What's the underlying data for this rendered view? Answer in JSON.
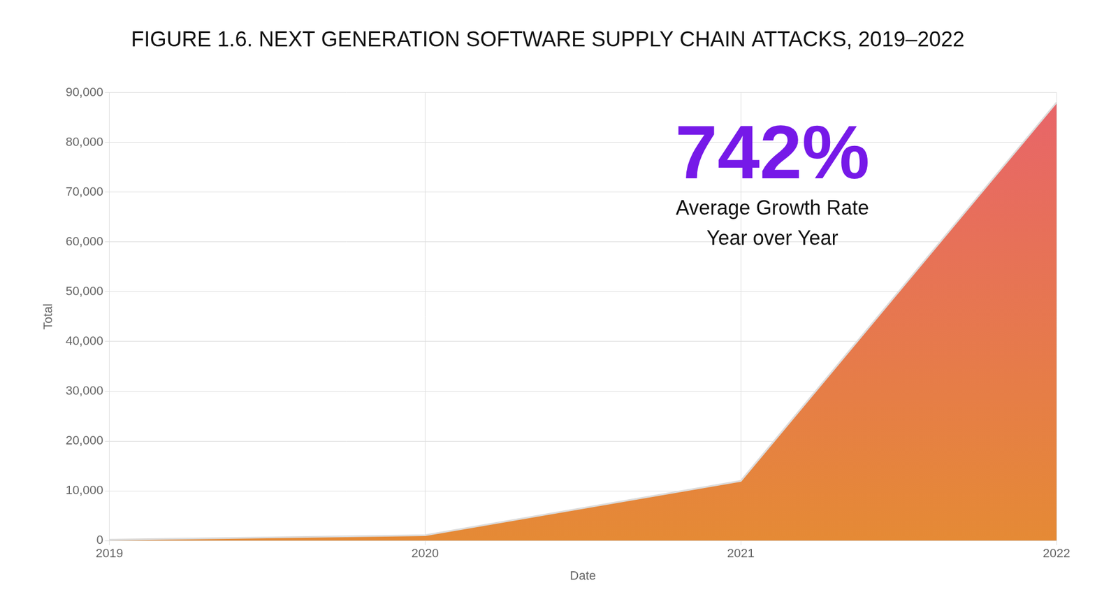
{
  "chart_data": {
    "type": "area",
    "title": "FIGURE 1.6. NEXT GENERATION SOFTWARE SUPPLY CHAIN ATTACKS, 2019–2022",
    "x_label": "Date",
    "y_label": "Total",
    "categories": [
      "2019",
      "2020",
      "2021",
      "2022"
    ],
    "values": [
      200,
      1100,
      12000,
      88000
    ],
    "color": "#e58a35",
    "ylim": [
      0,
      90000
    ],
    "yticks": [
      0,
      {
        "value": 10000,
        "label": "10,000"
      },
      {
        "value": 20000,
        "label": "20,000"
      },
      {
        "value": 30000,
        "label": "30,000"
      },
      {
        "value": 40000,
        "label": "40,000"
      },
      {
        "value": 50000,
        "label": "50,000"
      },
      {
        "value": 60000,
        "label": "60,000"
      },
      {
        "value": 70000,
        "label": "70,000"
      },
      {
        "value": 80000,
        "label": "80,000"
      },
      {
        "value": 90000,
        "label": "90,000"
      }
    ],
    "grid": true,
    "annotations": [
      {
        "text": "742%",
        "color": "#7619e8"
      },
      {
        "text": "Average Growth Rate",
        "color": "#111111"
      },
      {
        "text": "Year over Year",
        "color": "#111111"
      }
    ]
  }
}
